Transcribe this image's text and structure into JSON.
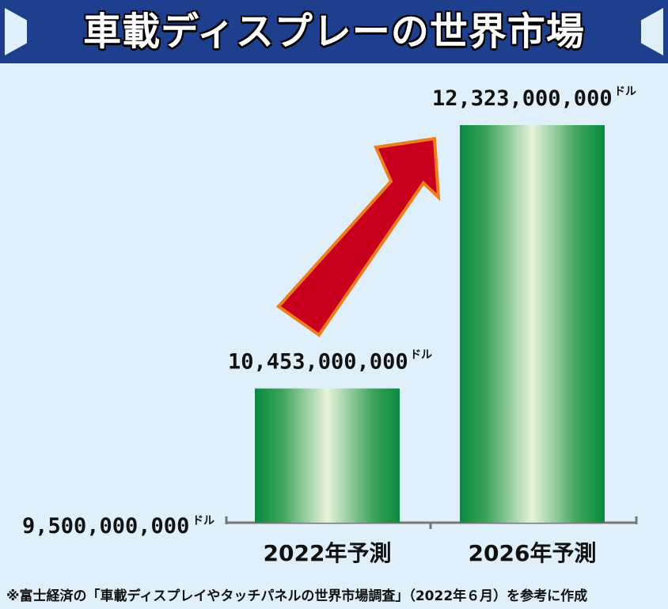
{
  "title": "車載ディスプレーの世界市場",
  "footnote": "※富士経済の「車載ディスプレイやタッチパネルの世界市場調査」（2022年６月）を参考に作成",
  "chart_data": {
    "type": "bar",
    "title": "車載ディスプレーの世界市場",
    "categories": [
      "2022年予測",
      "2026年予測"
    ],
    "values": [
      10453000000,
      12323000000
    ],
    "value_labels": [
      "10,453,000,000",
      "12,323,000,000"
    ],
    "unit": "ドル",
    "baseline_label": "9,500,000,000",
    "ylim": [
      9500000000,
      12323000000
    ],
    "xlabel": "",
    "ylabel": "",
    "grid": false,
    "legend": "none",
    "bar_color": "#0d8a3c",
    "arrow_color": "#c8001e",
    "arrow_outline": "#f07c1c"
  }
}
